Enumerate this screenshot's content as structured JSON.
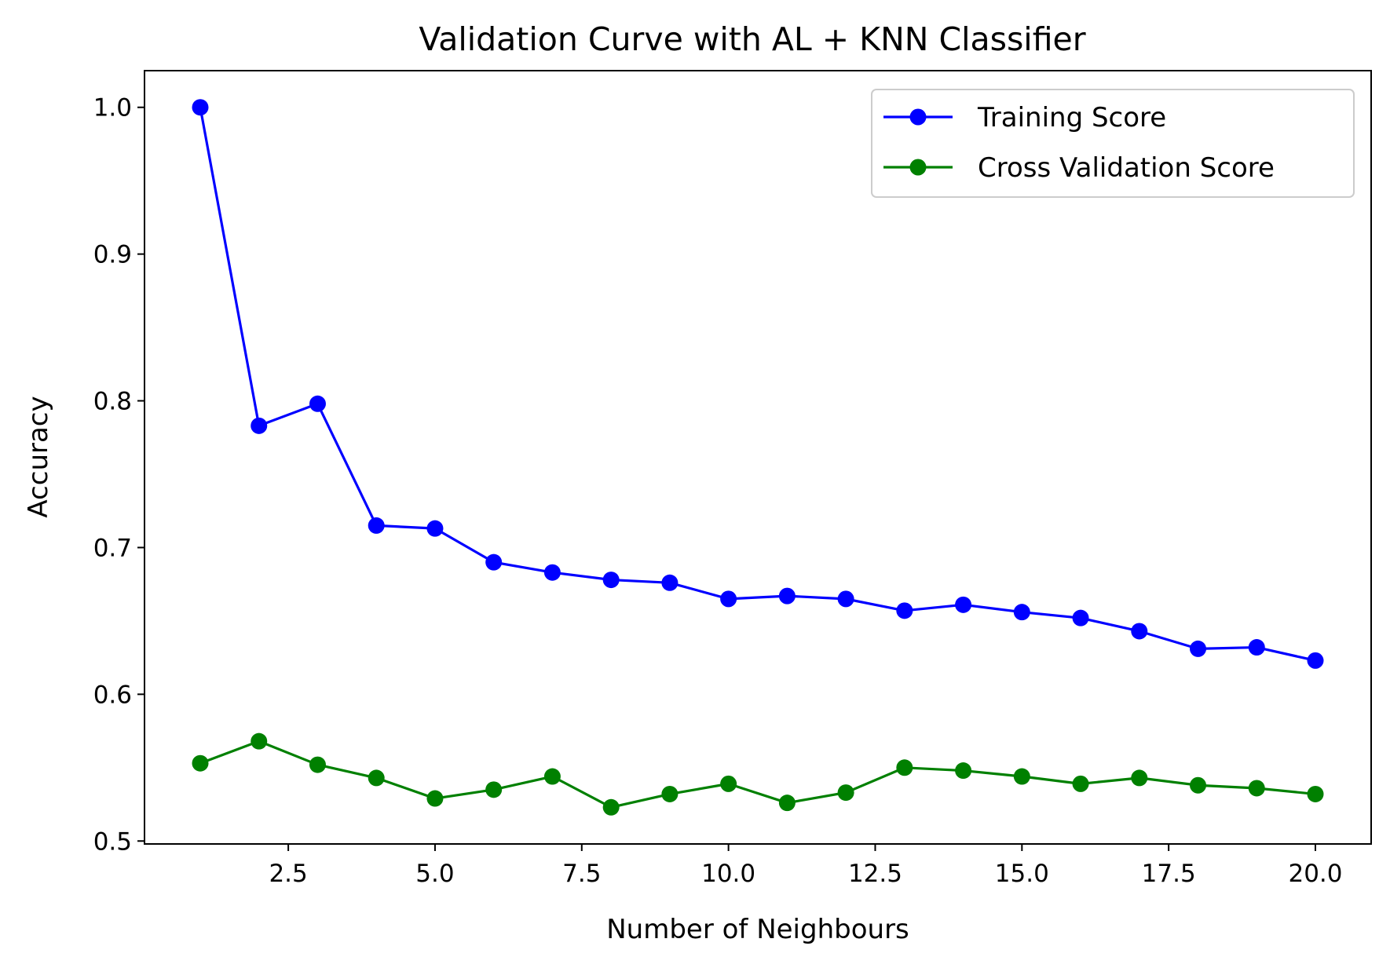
{
  "chart_data": {
    "type": "line",
    "title": "Validation Curve with AL + KNN Classifier",
    "xlabel": "Number of Neighbours",
    "ylabel": "Accuracy",
    "xlim": [
      0.05,
      20.95
    ],
    "ylim": [
      0.498,
      1.025
    ],
    "xticks": [
      2.5,
      5.0,
      7.5,
      10.0,
      12.5,
      15.0,
      17.5,
      20.0
    ],
    "xtick_labels": [
      "2.5",
      "5.0",
      "7.5",
      "10.0",
      "12.5",
      "15.0",
      "17.5",
      "20.0"
    ],
    "yticks": [
      0.5,
      0.6,
      0.7,
      0.8,
      0.9,
      1.0
    ],
    "ytick_labels": [
      "0.5",
      "0.6",
      "0.7",
      "0.8",
      "0.9",
      "1.0"
    ],
    "grid": false,
    "legend_position": "top-right",
    "x": [
      1,
      2,
      3,
      4,
      5,
      6,
      7,
      8,
      9,
      10,
      11,
      12,
      13,
      14,
      15,
      16,
      17,
      18,
      19,
      20
    ],
    "series": [
      {
        "name": "Training Score",
        "color": "#0000ff",
        "marker": "circle",
        "values": [
          1.0,
          0.783,
          0.798,
          0.715,
          0.713,
          0.69,
          0.683,
          0.678,
          0.676,
          0.665,
          0.667,
          0.665,
          0.657,
          0.661,
          0.656,
          0.652,
          0.643,
          0.631,
          0.632,
          0.623
        ]
      },
      {
        "name": "Cross Validation Score",
        "color": "#008000",
        "marker": "circle",
        "values": [
          0.553,
          0.568,
          0.552,
          0.543,
          0.529,
          0.535,
          0.544,
          0.523,
          0.532,
          0.539,
          0.526,
          0.533,
          0.55,
          0.548,
          0.544,
          0.539,
          0.543,
          0.538,
          0.536,
          0.532
        ]
      }
    ]
  }
}
